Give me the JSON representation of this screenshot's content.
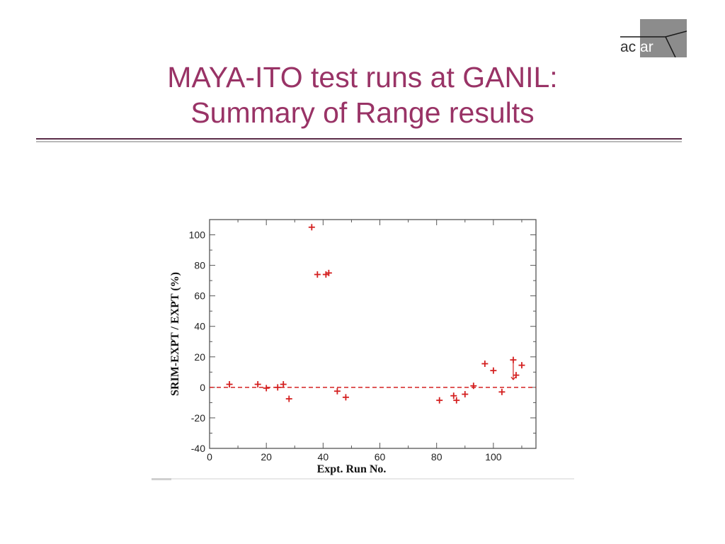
{
  "logo": {
    "text_dark": "ac",
    "text_light": "tar"
  },
  "title": {
    "line1": "MAYA-ITO test runs at GANIL:",
    "line2": "Summary of Range results"
  },
  "colors": {
    "title": "#993366",
    "marker": "#d42020",
    "reference_line": "#d42020"
  },
  "chart_data": {
    "type": "scatter",
    "xlabel": "Expt. Run No.",
    "ylabel": "SRIM-EXPT / EXPT (%)",
    "xlim": [
      0,
      115
    ],
    "ylim": [
      -40,
      110
    ],
    "x_ticks": [
      0,
      20,
      40,
      60,
      80,
      100
    ],
    "y_ticks": [
      -40,
      -20,
      0,
      20,
      40,
      60,
      80,
      100
    ],
    "x_tick_labels": [
      "0",
      "20",
      "40",
      "60",
      "80",
      "100"
    ],
    "y_tick_labels": [
      "-40",
      "-20",
      "0",
      "20",
      "40",
      "60",
      "80",
      "100"
    ],
    "grid": false,
    "reference_line": {
      "y": 0,
      "style": "dashed"
    },
    "series": [
      {
        "marker": "+",
        "points": [
          [
            7,
            2
          ],
          [
            17,
            2
          ],
          [
            20,
            -0.5
          ],
          [
            24,
            0
          ],
          [
            26,
            2
          ],
          [
            28,
            -7.5
          ],
          [
            36,
            105
          ],
          [
            38,
            74
          ],
          [
            41,
            74
          ],
          [
            42,
            75
          ],
          [
            45,
            -2.5
          ],
          [
            48,
            -6.5
          ],
          [
            81,
            -8.5
          ],
          [
            86,
            -5.5
          ],
          [
            87,
            -8.5
          ],
          [
            90,
            -4.5
          ],
          [
            93,
            1
          ],
          [
            97,
            15.5
          ],
          [
            100,
            11
          ],
          [
            103,
            -3
          ],
          [
            107,
            18
          ],
          [
            108,
            8
          ],
          [
            110,
            14.5
          ]
        ]
      }
    ],
    "error_bars": [
      {
        "x": 107,
        "y_high": 18,
        "y_low": 5
      }
    ]
  }
}
